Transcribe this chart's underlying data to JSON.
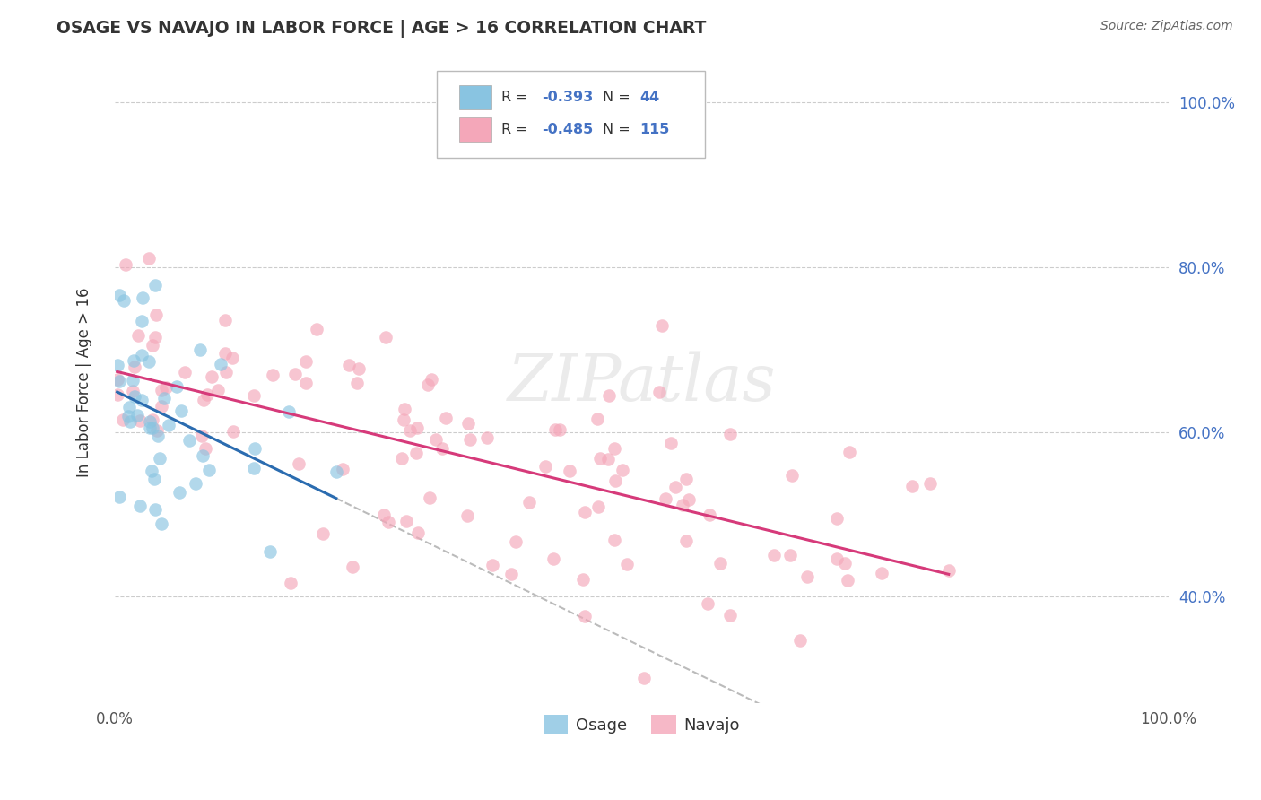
{
  "title": "OSAGE VS NAVAJO IN LABOR FORCE | AGE > 16 CORRELATION CHART",
  "source": "Source: ZipAtlas.com",
  "ylabel": "In Labor Force | Age > 16",
  "osage_R": -0.393,
  "osage_N": 44,
  "navajo_R": -0.485,
  "navajo_N": 115,
  "osage_color": "#89c4e1",
  "navajo_color": "#f4a7b9",
  "osage_line_color": "#2b6cb0",
  "navajo_line_color": "#d63a7a",
  "trendline_color": "#bbbbbb",
  "background_color": "#ffffff",
  "grid_color": "#cccccc",
  "tick_color": "#4472c4",
  "xlim": [
    0.0,
    1.0
  ],
  "ylim": [
    0.27,
    1.05
  ],
  "ytick_positions": [
    0.4,
    0.6,
    0.8,
    1.0
  ],
  "ytick_labels": [
    "40.0%",
    "60.0%",
    "80.0%",
    "100.0%"
  ],
  "xtick_labels_left": "0.0%",
  "xtick_labels_right": "100.0%"
}
